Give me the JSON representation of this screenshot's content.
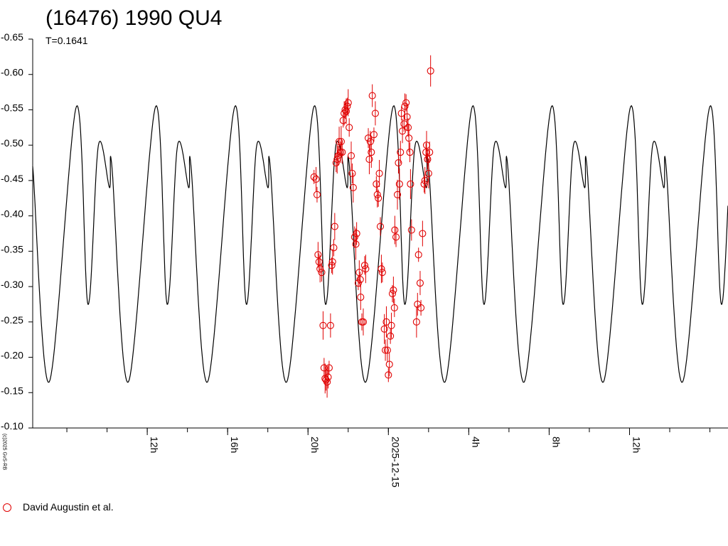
{
  "title": "(16476) 1990 QU4",
  "subtitle": "T=0.1641",
  "copyright": "(c)2025 GvS-RB",
  "legend": {
    "label": "David Augustin et al.",
    "color": "#e00000"
  },
  "chart_data": {
    "type": "scatter",
    "title": "(16476) 1990 QU4",
    "subtitle": "T=0.1641",
    "xlabel": "",
    "ylabel": "",
    "y_inverted": true,
    "xlim_hours": [
      6.3,
      40.9
    ],
    "ylim": [
      -0.1,
      -0.65
    ],
    "y_ticks": [
      "-0.65",
      "-0.60",
      "-0.55",
      "-0.50",
      "-0.45",
      "-0.40",
      "-0.35",
      "-0.30",
      "-0.25",
      "-0.20",
      "-0.15",
      "-0.10"
    ],
    "x_ticks": [
      {
        "hour": 12,
        "label": "12h"
      },
      {
        "hour": 16,
        "label": "16h"
      },
      {
        "hour": 20,
        "label": "20h"
      },
      {
        "hour": 24,
        "label": "2025-12-15"
      },
      {
        "hour": 28,
        "label": "4h"
      },
      {
        "hour": 32,
        "label": "8h"
      },
      {
        "hour": 36,
        "label": "12h"
      }
    ],
    "fit_curve": {
      "period_hours": 3.94,
      "series": "model",
      "anchors": [
        {
          "hour": 6.3,
          "mag": -0.47
        },
        {
          "hour": 7.12,
          "mag": -0.165
        },
        {
          "hour": 8.48,
          "mag": -0.555
        },
        {
          "hour": 9.05,
          "mag": -0.275
        },
        {
          "hour": 9.57,
          "mag": -0.5
        },
        {
          "hour": 10.12,
          "mag": -0.44
        }
      ]
    },
    "series": [
      {
        "name": "David Augustin et al.",
        "color": "#e00000",
        "points": [
          [
            20.3,
            -0.455
          ],
          [
            20.4,
            -0.452
          ],
          [
            20.45,
            -0.43
          ],
          [
            20.5,
            -0.345
          ],
          [
            20.55,
            -0.335
          ],
          [
            20.6,
            -0.325
          ],
          [
            20.68,
            -0.32
          ],
          [
            20.75,
            -0.245
          ],
          [
            20.8,
            -0.185
          ],
          [
            20.85,
            -0.17
          ],
          [
            20.9,
            -0.168
          ],
          [
            20.95,
            -0.165
          ],
          [
            21.0,
            -0.172
          ],
          [
            21.05,
            -0.185
          ],
          [
            21.12,
            -0.245
          ],
          [
            21.18,
            -0.33
          ],
          [
            21.22,
            -0.335
          ],
          [
            21.28,
            -0.355
          ],
          [
            21.33,
            -0.385
          ],
          [
            21.4,
            -0.475
          ],
          [
            21.45,
            -0.48
          ],
          [
            21.5,
            -0.485
          ],
          [
            21.55,
            -0.505
          ],
          [
            21.62,
            -0.49
          ],
          [
            21.65,
            -0.505
          ],
          [
            21.7,
            -0.49
          ],
          [
            21.75,
            -0.535
          ],
          [
            21.8,
            -0.545
          ],
          [
            21.85,
            -0.55
          ],
          [
            21.9,
            -0.548
          ],
          [
            21.95,
            -0.555
          ],
          [
            22.0,
            -0.56
          ],
          [
            22.05,
            -0.525
          ],
          [
            22.15,
            -0.485
          ],
          [
            22.2,
            -0.46
          ],
          [
            22.25,
            -0.44
          ],
          [
            22.32,
            -0.37
          ],
          [
            22.38,
            -0.36
          ],
          [
            22.42,
            -0.375
          ],
          [
            22.5,
            -0.305
          ],
          [
            22.55,
            -0.32
          ],
          [
            22.6,
            -0.31
          ],
          [
            22.62,
            -0.285
          ],
          [
            22.68,
            -0.25
          ],
          [
            22.75,
            -0.25
          ],
          [
            22.82,
            -0.33
          ],
          [
            22.87,
            -0.325
          ],
          [
            23.0,
            -0.51
          ],
          [
            23.05,
            -0.48
          ],
          [
            23.1,
            -0.505
          ],
          [
            23.15,
            -0.49
          ],
          [
            23.2,
            -0.57
          ],
          [
            23.28,
            -0.515
          ],
          [
            23.35,
            -0.545
          ],
          [
            23.4,
            -0.445
          ],
          [
            23.45,
            -0.43
          ],
          [
            23.5,
            -0.425
          ],
          [
            23.55,
            -0.46
          ],
          [
            23.6,
            -0.385
          ],
          [
            23.65,
            -0.325
          ],
          [
            23.7,
            -0.32
          ],
          [
            23.8,
            -0.24
          ],
          [
            23.85,
            -0.21
          ],
          [
            23.9,
            -0.25
          ],
          [
            23.95,
            -0.21
          ],
          [
            24.0,
            -0.175
          ],
          [
            24.05,
            -0.19
          ],
          [
            24.1,
            -0.23
          ],
          [
            24.15,
            -0.245
          ],
          [
            24.2,
            -0.29
          ],
          [
            24.25,
            -0.295
          ],
          [
            24.3,
            -0.27
          ],
          [
            24.32,
            -0.38
          ],
          [
            24.38,
            -0.37
          ],
          [
            24.45,
            -0.43
          ],
          [
            24.5,
            -0.475
          ],
          [
            24.55,
            -0.445
          ],
          [
            24.6,
            -0.49
          ],
          [
            24.65,
            -0.545
          ],
          [
            24.7,
            -0.52
          ],
          [
            24.78,
            -0.53
          ],
          [
            24.82,
            -0.555
          ],
          [
            24.88,
            -0.56
          ],
          [
            24.93,
            -0.54
          ],
          [
            24.98,
            -0.525
          ],
          [
            25.02,
            -0.51
          ],
          [
            25.07,
            -0.49
          ],
          [
            25.1,
            -0.445
          ],
          [
            25.15,
            -0.38
          ],
          [
            25.4,
            -0.25
          ],
          [
            25.45,
            -0.275
          ],
          [
            25.5,
            -0.345
          ],
          [
            25.58,
            -0.305
          ],
          [
            25.62,
            -0.27
          ],
          [
            25.7,
            -0.375
          ],
          [
            25.78,
            -0.445
          ],
          [
            25.82,
            -0.45
          ],
          [
            25.87,
            -0.49
          ],
          [
            25.9,
            -0.5
          ],
          [
            25.95,
            -0.48
          ],
          [
            26.0,
            -0.46
          ],
          [
            26.05,
            -0.49
          ],
          [
            26.1,
            -0.605
          ]
        ]
      }
    ]
  }
}
